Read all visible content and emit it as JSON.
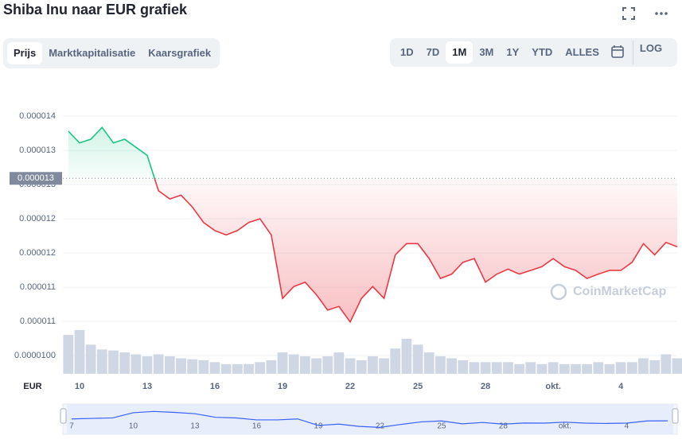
{
  "ui": {
    "title": "Shiba Inu naar EUR grafiek",
    "tabs": [
      "Prijs",
      "Marktkapitalisatie",
      "Kaarsgrafiek"
    ],
    "active_tab": 0,
    "ranges": [
      "1D",
      "7D",
      "1M",
      "3M",
      "1Y",
      "YTD",
      "ALLES"
    ],
    "active_range": 2,
    "log": "LOG",
    "currency": "EUR",
    "watermark": "CoinMarketCap"
  },
  "chart_data": [
    {
      "type": "line",
      "categories": [
        null,
        "10",
        null,
        null,
        null,
        null,
        null,
        "13",
        null,
        null,
        null,
        null,
        null,
        "16",
        null,
        null,
        null,
        null,
        null,
        "19",
        null,
        null,
        null,
        null,
        null,
        "22",
        null,
        null,
        null,
        null,
        null,
        "25",
        null,
        null,
        null,
        null,
        null,
        "28",
        null,
        null,
        null,
        null,
        null,
        "okt.",
        null,
        null,
        null,
        null,
        null,
        "4",
        null,
        null,
        null,
        null,
        null
      ],
      "series": [
        {
          "name": "Prijs",
          "color_above": "#16c784",
          "color_below": "#ea3943",
          "values": [
            1.361e-05,
            1.342e-05,
            1.348e-05,
            1.367e-05,
            1.342e-05,
            1.348e-05,
            1.335e-05,
            1.322e-05,
            1.265e-05,
            1.252e-05,
            1.258e-05,
            1.239e-05,
            1.214e-05,
            1.201e-05,
            1.194e-05,
            1.201e-05,
            1.214e-05,
            1.22e-05,
            1.194e-05,
            1.092e-05,
            1.111e-05,
            1.118e-05,
            1.098e-05,
            1.073e-05,
            1.079e-05,
            1.054e-05,
            1.092e-05,
            1.111e-05,
            1.092e-05,
            1.162e-05,
            1.18e-05,
            1.18e-05,
            1.156e-05,
            1.124e-05,
            1.131e-05,
            1.15e-05,
            1.156e-05,
            1.118e-05,
            1.131e-05,
            1.139e-05,
            1.131e-05,
            1.137e-05,
            1.143e-05,
            1.156e-05,
            1.143e-05,
            1.137e-05,
            1.124e-05,
            1.131e-05,
            1.137e-05,
            1.137e-05,
            1.15e-05,
            1.18e-05,
            1.162e-05,
            1.182e-05,
            1.175e-05
          ]
        }
      ],
      "volume": {
        "color": "#cfd6e4",
        "values": [
          40,
          45,
          30,
          25,
          24,
          22,
          20,
          18,
          20,
          18,
          16,
          15,
          14,
          12,
          10,
          10,
          10,
          12,
          14,
          22,
          20,
          18,
          16,
          18,
          22,
          16,
          14,
          18,
          16,
          26,
          36,
          30,
          22,
          18,
          16,
          14,
          12,
          12,
          12,
          12,
          10,
          12,
          10,
          12,
          10,
          10,
          10,
          12,
          10,
          12,
          12,
          16,
          14,
          20,
          16
        ]
      },
      "baseline": {
        "value": 1.285e-05,
        "label": "0.000013"
      },
      "ylim": [
        9.7e-06,
        1.444e-05
      ],
      "yticks": [
        {
          "value": 1.385e-05,
          "label": "0.000014"
        },
        {
          "value": 1.33e-05,
          "label": "0.000013"
        },
        {
          "value": 1.275e-05,
          "label": "0.000013"
        },
        {
          "value": 1.22e-05,
          "label": "0.000012"
        },
        {
          "value": 1.165e-05,
          "label": "0.000012"
        },
        {
          "value": 1.11e-05,
          "label": "0.000011"
        },
        {
          "value": 1.055e-05,
          "label": "0.000011"
        },
        {
          "value": 1e-05,
          "label": "0.0000100"
        }
      ],
      "grid": true
    },
    {
      "type": "line",
      "categories": [
        "7",
        null,
        null,
        "10",
        null,
        null,
        "13",
        null,
        null,
        "16",
        null,
        null,
        "19",
        null,
        null,
        "22",
        null,
        null,
        "25",
        null,
        null,
        "28",
        null,
        null,
        "okt.",
        null,
        null,
        "4",
        null,
        null
      ],
      "color": "#3861fb",
      "values": [
        1.22e-05,
        1.23e-05,
        1.24e-05,
        1.342e-05,
        1.367e-05,
        1.348e-05,
        1.322e-05,
        1.252e-05,
        1.239e-05,
        1.201e-05,
        1.201e-05,
        1.22e-05,
        1.092e-05,
        1.118e-05,
        1.073e-05,
        1.054e-05,
        1.111e-05,
        1.162e-05,
        1.18e-05,
        1.124e-05,
        1.15e-05,
        1.118e-05,
        1.139e-05,
        1.137e-05,
        1.156e-05,
        1.137e-05,
        1.131e-05,
        1.137e-05,
        1.18e-05,
        1.182e-05
      ],
      "ylim": [
        9.5e-06,
        1.45e-05
      ]
    }
  ]
}
